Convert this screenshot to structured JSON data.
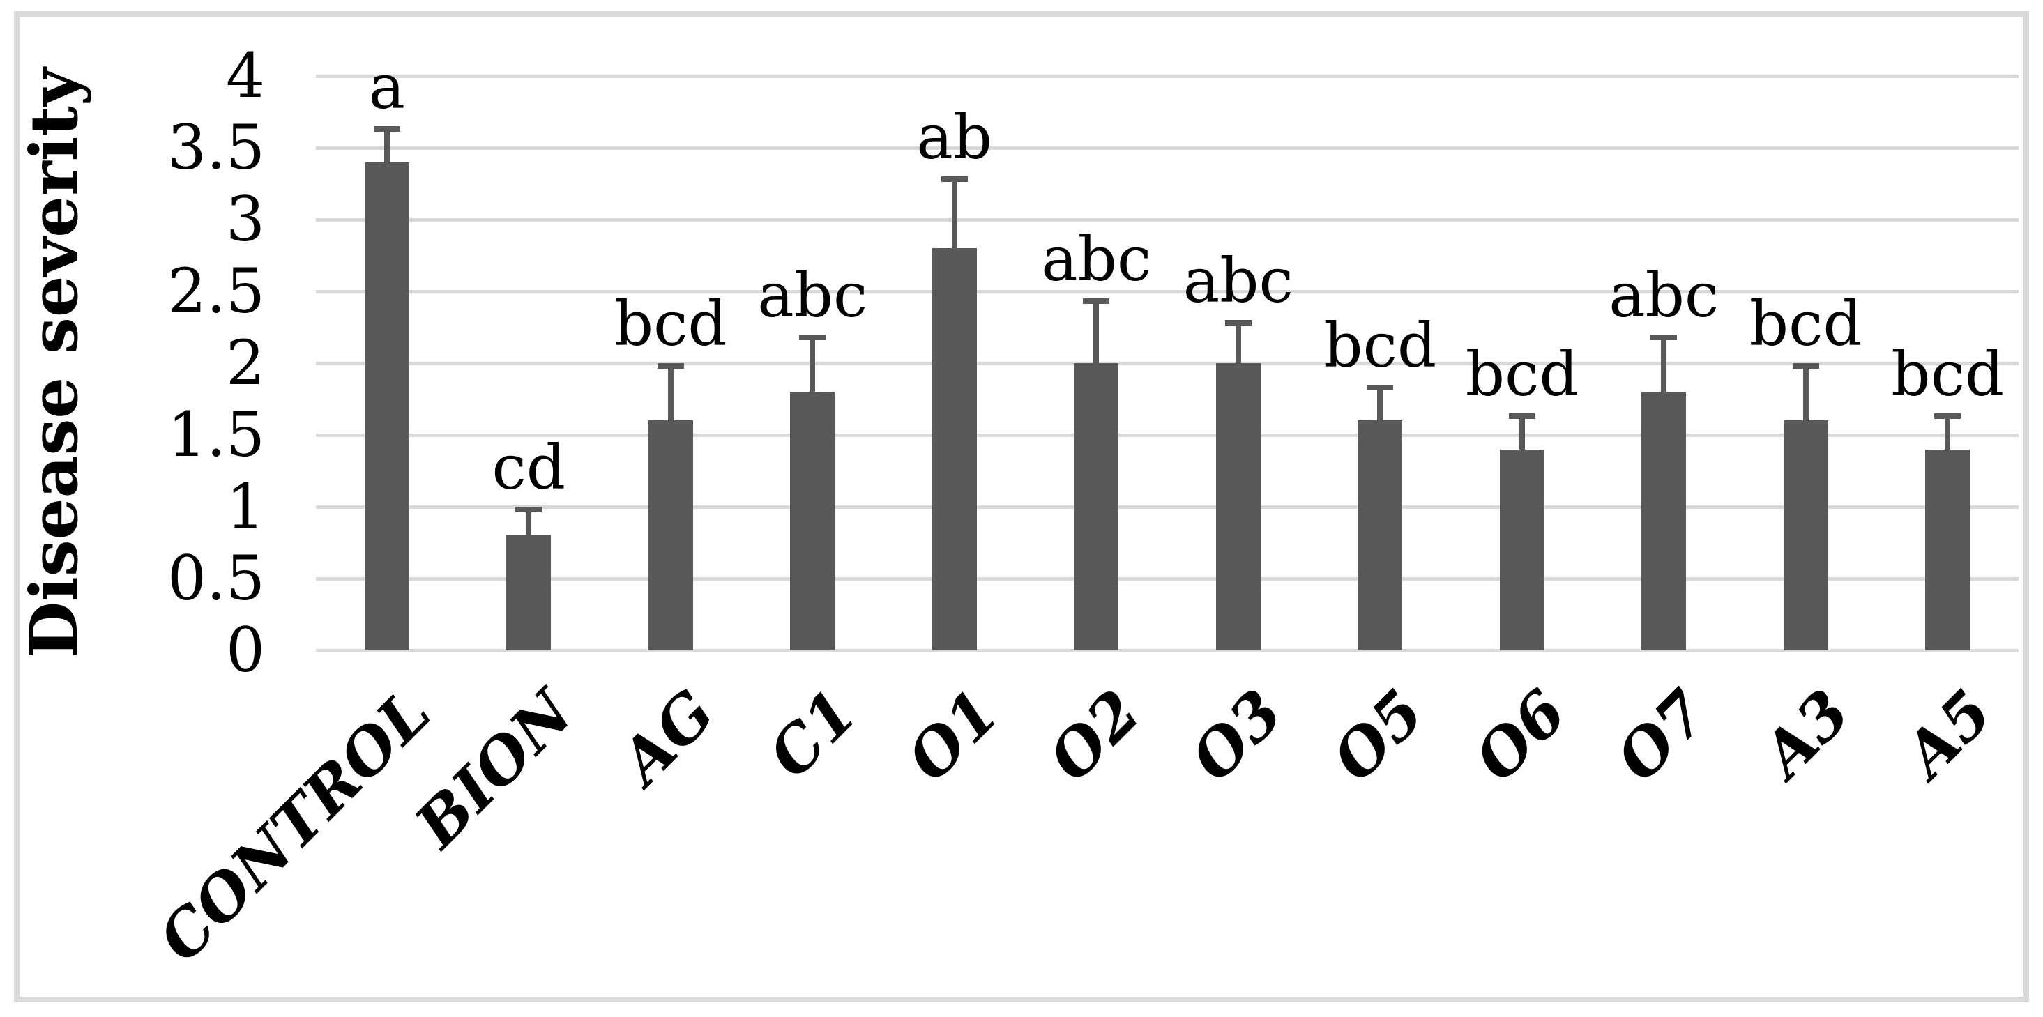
{
  "figure": {
    "background": "#ffffff",
    "border_color": "#d9d9d9"
  },
  "chart_data": {
    "type": "bar",
    "title": "",
    "xlabel": "",
    "ylabel": "Disease severity",
    "ylim": [
      0,
      4
    ],
    "yticks": [
      0,
      0.5,
      1,
      1.5,
      2,
      2.5,
      3,
      3.5,
      4
    ],
    "ytick_labels": [
      "0",
      "0.5",
      "1",
      "1.5",
      "2",
      "2.5",
      "3",
      "3.5",
      "4"
    ],
    "grid": "horizontal",
    "legend": "none",
    "bar_color": "#595959",
    "error_bar_color": "#595959",
    "gridline_color": "#d9d9d9",
    "categories": [
      "CONTROL",
      "BION",
      "AG",
      "C1",
      "O1",
      "O2",
      "O3",
      "O5",
      "O6",
      "O7",
      "A3",
      "A5"
    ],
    "values": [
      3.4,
      0.8,
      1.6,
      1.8,
      2.8,
      2.0,
      2.0,
      1.6,
      1.4,
      1.8,
      1.6,
      1.4
    ],
    "error_plus": [
      0.25,
      0.2,
      0.4,
      0.4,
      0.5,
      0.45,
      0.3,
      0.25,
      0.25,
      0.4,
      0.4,
      0.25
    ],
    "significance_letters": [
      "a",
      "cd",
      "bcd",
      "abc",
      "ab",
      "abc",
      "abc",
      "bcd",
      "bcd",
      "abc",
      "bcd",
      "bcd"
    ]
  }
}
